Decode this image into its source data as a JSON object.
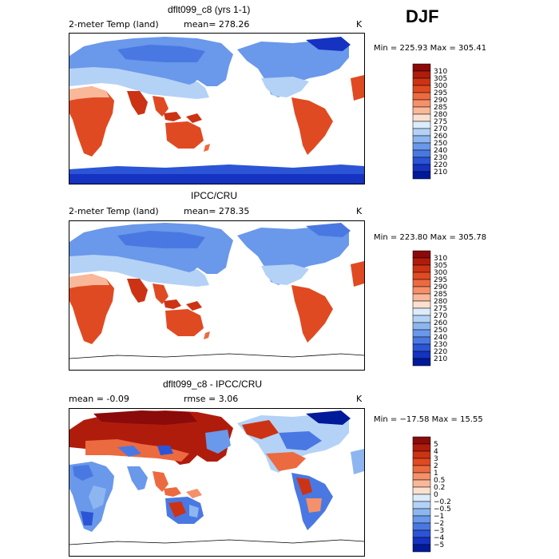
{
  "season": "DJF",
  "unit": "K",
  "panels": [
    {
      "title": "dflt099_c8 (yrs 1-1)",
      "left_label": "2-meter Temp (land)",
      "stat1": "mean= 278.26",
      "stat2": "",
      "minmax": "Min = 225.93 Max = 305.41",
      "colorbar": {
        "levels": [
          "310",
          "305",
          "300",
          "295",
          "290",
          "285",
          "280",
          "275",
          "270",
          "260",
          "250",
          "240",
          "230",
          "220",
          "210"
        ],
        "colors": [
          "#8b0a0a",
          "#b01c0c",
          "#cc3314",
          "#e04a22",
          "#ec6a40",
          "#f4906a",
          "#f8b899",
          "#fbe0d0",
          "#dcecfb",
          "#b4d2f6",
          "#8db6f0",
          "#6a98ea",
          "#4a78e2",
          "#2c54d6",
          "#1532c0",
          "#001a99"
        ]
      }
    },
    {
      "title": "IPCC/CRU",
      "left_label": "2-meter Temp (land)",
      "stat1": "mean= 278.35",
      "stat2": "",
      "minmax": "Min = 223.80 Max = 305.78",
      "colorbar": {
        "levels": [
          "310",
          "305",
          "300",
          "295",
          "290",
          "285",
          "280",
          "275",
          "270",
          "260",
          "250",
          "240",
          "230",
          "220",
          "210"
        ],
        "colors": [
          "#8b0a0a",
          "#b01c0c",
          "#cc3314",
          "#e04a22",
          "#ec6a40",
          "#f4906a",
          "#f8b899",
          "#fbe0d0",
          "#dcecfb",
          "#b4d2f6",
          "#8db6f0",
          "#6a98ea",
          "#4a78e2",
          "#2c54d6",
          "#1532c0",
          "#001a99"
        ]
      }
    },
    {
      "title": "dflt099_c8 - IPCC/CRU",
      "left_label": "mean =   -0.09",
      "stat1": "",
      "stat2": "rmse =    3.06",
      "minmax": "Min = −17.58 Max =  15.55",
      "colorbar": {
        "levels": [
          "5",
          "4",
          "3",
          "2",
          "1",
          "0.5",
          "0.2",
          "0",
          "−0.2",
          "−0.5",
          "−1",
          "−2",
          "−3",
          "−4",
          "−5"
        ],
        "colors": [
          "#8b0a0a",
          "#b01c0c",
          "#cc3314",
          "#e04a22",
          "#ec6a40",
          "#f4906a",
          "#f8b899",
          "#fbe0d0",
          "#dcecfb",
          "#b4d2f6",
          "#8db6f0",
          "#6a98ea",
          "#4a78e2",
          "#2c54d6",
          "#1532c0",
          "#001a99"
        ]
      }
    }
  ]
}
